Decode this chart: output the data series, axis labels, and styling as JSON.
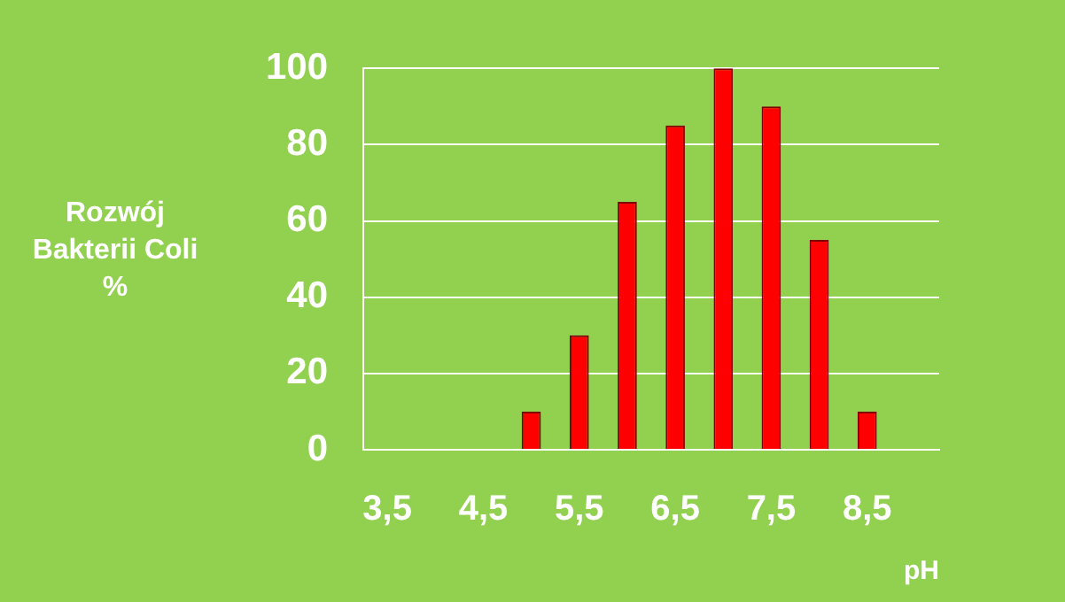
{
  "chart_data": {
    "type": "bar",
    "xlabel": "pH",
    "ylabel": "Rozwój Bakterii Coli %",
    "categories": [
      "3,5",
      null,
      "4,5",
      null,
      "5,5",
      null,
      "6,5",
      null,
      "7,5",
      null,
      "8,5",
      null
    ],
    "values": [
      0,
      0,
      0,
      10,
      30,
      65,
      85,
      100,
      90,
      55,
      10,
      0
    ],
    "color": "#ff0000",
    "ylim": [
      0,
      100
    ],
    "yticks": [
      0,
      20,
      40,
      60,
      80,
      100
    ],
    "grid": "y",
    "legend": false
  }
}
